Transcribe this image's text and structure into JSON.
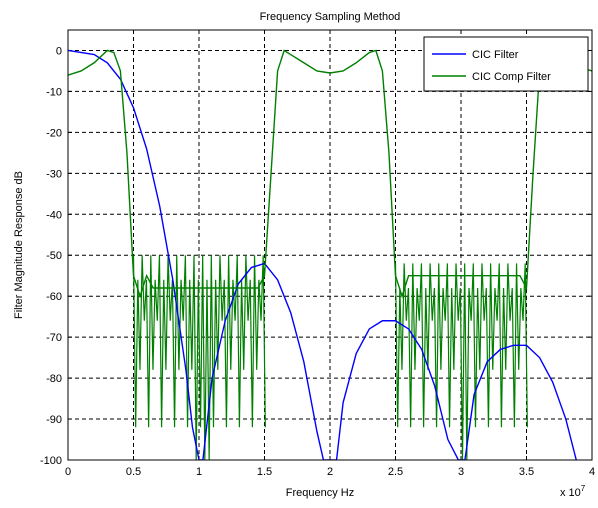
{
  "chart_data": {
    "type": "line",
    "title": "Frequency Sampling Method",
    "xlabel": "Frequency Hz",
    "ylabel": "Filter Magnitude Response dB",
    "x_multiplier": "x 10",
    "x_exponent": "7",
    "xlim": [
      0,
      4
    ],
    "ylim": [
      -100,
      5
    ],
    "grid": true,
    "legend_position": "top-right",
    "xticks": [
      "0",
      "0.5",
      "1",
      "1.5",
      "2",
      "2.5",
      "3",
      "3.5",
      "4"
    ],
    "yticks": [
      "0",
      "-10",
      "-20",
      "-30",
      "-40",
      "-50",
      "-60",
      "-70",
      "-80",
      "-90",
      "-100"
    ],
    "series": [
      {
        "name": "CIC Filter",
        "color": "#0000ff",
        "x": [
          0,
          0.2,
          0.3,
          0.4,
          0.5,
          0.6,
          0.7,
          0.8,
          0.9,
          0.95,
          1.0,
          1.03,
          1.1,
          1.2,
          1.3,
          1.4,
          1.5,
          1.6,
          1.7,
          1.8,
          1.9,
          1.95,
          2.05,
          2.1,
          2.2,
          2.3,
          2.4,
          2.5,
          2.6,
          2.7,
          2.8,
          2.9,
          2.98,
          3.03,
          3.1,
          3.2,
          3.3,
          3.4,
          3.5,
          3.6,
          3.7,
          3.8,
          3.88
        ],
        "y": [
          0,
          -1,
          -3,
          -7,
          -14,
          -24,
          -38,
          -56,
          -78,
          -92,
          -100,
          -100,
          -80,
          -66,
          -57,
          -53,
          -52,
          -56,
          -64,
          -76,
          -93,
          -100,
          -100,
          -86,
          -74,
          -68,
          -66,
          -66,
          -68,
          -73,
          -82,
          -95,
          -100,
          -100,
          -84,
          -76,
          -73,
          -72,
          -72,
          -75,
          -81,
          -90,
          -100
        ]
      },
      {
        "name": "CIC Comp Filter",
        "color": "#008000",
        "x": [
          0,
          0.1,
          0.2,
          0.3,
          0.35,
          0.4,
          0.45,
          0.5,
          0.55,
          0.6,
          0.65,
          1.45,
          1.5,
          1.55,
          1.6,
          1.65,
          1.7,
          1.8,
          1.9,
          2.0,
          2.1,
          2.2,
          2.3,
          2.35,
          2.4,
          2.45,
          2.5,
          2.55,
          2.6,
          3.45,
          3.5,
          3.55,
          3.6,
          3.65,
          3.7,
          4.0
        ],
        "y": [
          -6,
          -5,
          -3,
          0,
          -0.5,
          -5,
          -25,
          -55,
          -60,
          -55,
          -58,
          -58,
          -55,
          -30,
          -5,
          0,
          -1,
          -3,
          -5,
          -5.5,
          -5,
          -3,
          -0.5,
          0,
          -5,
          -25,
          -55,
          -60,
          -55,
          -55,
          -58,
          -30,
          -5,
          0,
          -2,
          -5
        ]
      }
    ],
    "stopband_ripple": [
      {
        "from": 0.5,
        "to": 1.5,
        "top": -50,
        "bottom": -92,
        "deep_nulls": [
          0.95,
          1.02,
          1.07
        ]
      },
      {
        "from": 2.5,
        "to": 3.5,
        "top": -52,
        "bottom": -92,
        "deep_nulls": [
          2.98,
          3.03
        ]
      }
    ]
  }
}
